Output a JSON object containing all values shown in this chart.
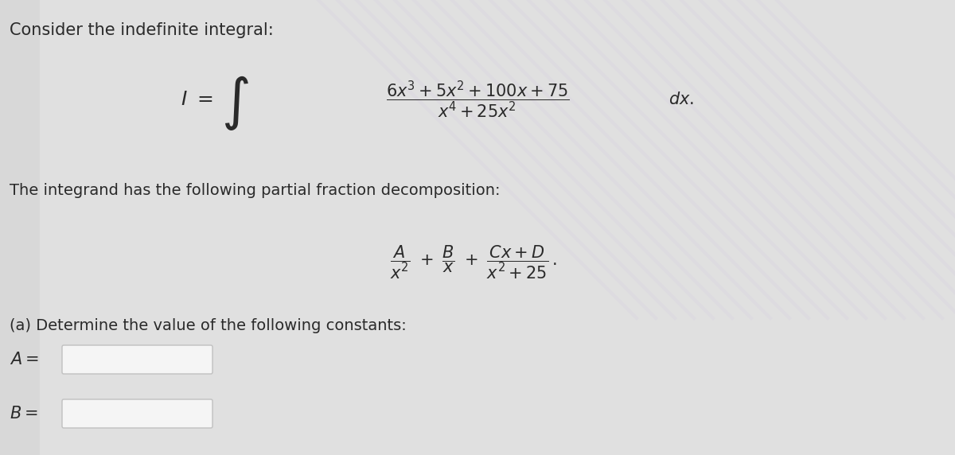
{
  "bg_color": "#e8e8e8",
  "left_bg_color": "#dcdcdc",
  "text_color": "#2a2a2a",
  "title_text": "Consider the indefinite integral:",
  "pfd_intro": "The integrand has the following partial fraction decomposition:",
  "part_a_text": "(a) Determine the value of the following constants:",
  "label_A": "A =",
  "label_B": "B =",
  "input_box_color": "#f5f5f5",
  "input_box_border": "#c0c0c0",
  "font_size_title": 15,
  "font_size_body": 14,
  "font_size_math": 15
}
